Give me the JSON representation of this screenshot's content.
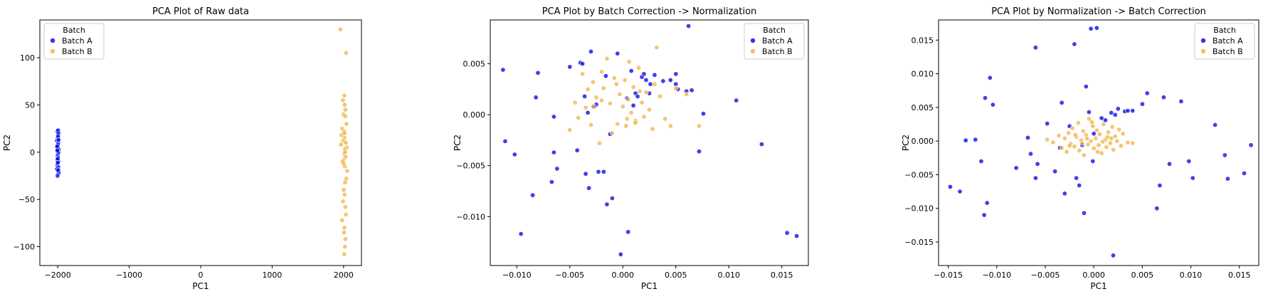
{
  "colors": {
    "batch_a": "#0000e0",
    "batch_b": "#f0b040",
    "axis": "#000000"
  },
  "chart_data": [
    {
      "type": "scatter",
      "title": "PCA Plot of Raw data",
      "xlabel": "PC1",
      "ylabel": "PC2",
      "xlim": [
        -2250,
        2250
      ],
      "ylim": [
        -120,
        140
      ],
      "xticks": [
        -2000,
        -1000,
        0,
        1000,
        2000
      ],
      "xtick_labels": [
        "−2000",
        "−1000",
        "0",
        "1000",
        "2000"
      ],
      "yticks": [
        -100,
        -50,
        0,
        50,
        100
      ],
      "ytick_labels": [
        "−100",
        "−50",
        "0",
        "50",
        "100"
      ],
      "grid": false,
      "legend": {
        "title": "Batch",
        "placement": "top-left"
      },
      "series": [
        {
          "name": "Batch A",
          "color": "#0000e0",
          "x": [
            -2005,
            -1995,
            -1990,
            -2000,
            -2010,
            -1992,
            -1998,
            -2003,
            -1987,
            -2008,
            -1996,
            -2001,
            -1994,
            -2006,
            -1989,
            -1999,
            -2004,
            -1993,
            -2011,
            -1997,
            -1986,
            -2002,
            -1991,
            -2007,
            -1995,
            -2000,
            -1988,
            -1999,
            -2004,
            -1993
          ],
          "y": [
            22,
            23,
            20,
            15,
            12,
            10,
            8,
            5,
            3,
            1,
            -2,
            -4,
            -6,
            -8,
            -10,
            -12,
            -14,
            -16,
            -18,
            -20,
            -22,
            -25,
            0,
            6,
            17,
            -7,
            13,
            -11,
            2,
            -19
          ]
        },
        {
          "name": "Batch B",
          "color": "#f0b040",
          "x": [
            1955,
            2035,
            2010,
            1990,
            2015,
            2025,
            1998,
            2022,
            2040,
            1980,
            1970,
            2005,
            2012,
            1995,
            2030,
            2045,
            1962,
            2018,
            2008,
            2028,
            2000,
            1985,
            2016,
            2050,
            2038,
            2020,
            2002,
            2014,
            1992,
            2024,
            2032,
            1978,
            2011,
            2006,
            2026,
            2019,
            2009,
            2013,
            2001,
            2021
          ],
          "y": [
            130,
            105,
            60,
            55,
            50,
            45,
            40,
            38,
            30,
            25,
            18,
            22,
            15,
            12,
            10,
            5,
            8,
            3,
            -2,
            -5,
            -8,
            -10,
            -15,
            -20,
            -28,
            -32,
            -40,
            -45,
            -52,
            -58,
            -66,
            -72,
            -80,
            -85,
            -92,
            -100,
            -108,
            20,
            -12,
            0
          ]
        }
      ]
    },
    {
      "type": "scatter",
      "title": "PCA Plot by Batch Correction -> Normalization",
      "xlabel": "PC1",
      "ylabel": "PC2",
      "xlim": [
        -0.0125,
        0.0175
      ],
      "ylim": [
        -0.0148,
        0.0093
      ],
      "xticks": [
        -0.01,
        -0.005,
        0,
        0.005,
        0.01,
        0.015
      ],
      "xtick_labels": [
        "−0.010",
        "−0.005",
        "0.000",
        "0.005",
        "0.010",
        "0.015"
      ],
      "yticks": [
        -0.01,
        -0.005,
        0,
        0.005
      ],
      "ytick_labels": [
        "−0.010",
        "−0.005",
        "0.000",
        "0.005"
      ],
      "grid": false,
      "legend": {
        "title": "Batch",
        "placement": "top-right"
      },
      "series": [
        {
          "name": "Batch A",
          "color": "#0000e0",
          "x": [
            -0.0113,
            -0.0111,
            -0.0102,
            -0.0096,
            -0.0085,
            -0.0082,
            -0.008,
            -0.0067,
            -0.0065,
            -0.0065,
            -0.0062,
            -0.005,
            -0.0043,
            -0.004,
            -0.0038,
            -0.0036,
            -0.0035,
            -0.0033,
            -0.0032,
            -0.003,
            -0.0025,
            -0.0023,
            -0.0018,
            -0.0016,
            -0.0015,
            -0.0012,
            -0.001,
            -0.0005,
            -0.0002,
            0.0005,
            0.0008,
            0.001,
            0.0012,
            0.0014,
            0.0018,
            0.002,
            0.0022,
            0.0026,
            0.003,
            0.0038,
            0.0045,
            0.005,
            0.005,
            0.0052,
            0.006,
            0.0062,
            0.0065,
            0.0072,
            0.0076,
            0.0107,
            0.0131,
            0.0155,
            0.0164,
            -0.0027,
            0.0004,
            0.0025
          ],
          "y": [
            0.0044,
            -0.0026,
            -0.0039,
            -0.0117,
            -0.0079,
            0.0017,
            0.0041,
            -0.0066,
            -0.0037,
            -0.0002,
            -0.0053,
            0.0047,
            -0.0035,
            0.0051,
            0.005,
            0.0018,
            -0.0058,
            0.0002,
            -0.0072,
            0.0062,
            0.001,
            -0.0056,
            -0.0056,
            0.0038,
            -0.0088,
            -0.0019,
            -0.0082,
            0.006,
            -0.0137,
            -0.0115,
            0.0043,
            0.0009,
            0.0021,
            0.0018,
            0.0037,
            0.004,
            0.0034,
            0.003,
            0.0039,
            0.0033,
            0.0034,
            0.004,
            0.003,
            0.0025,
            0.0023,
            0.0087,
            0.0024,
            -0.0036,
            0.0001,
            0.0014,
            -0.0029,
            -0.0116,
            -0.0119,
            0.0008,
            0.0016,
            0.0021
          ]
        },
        {
          "name": "Batch B",
          "color": "#f0b040",
          "x": [
            -0.005,
            -0.0045,
            -0.0042,
            -0.0038,
            -0.0035,
            -0.0033,
            -0.003,
            -0.0028,
            -0.0025,
            -0.0022,
            -0.002,
            -0.0018,
            -0.0015,
            -0.0012,
            -0.001,
            -0.0008,
            -0.0005,
            -0.0003,
            0.0,
            0.0002,
            0.0004,
            0.0005,
            0.0006,
            0.0008,
            0.001,
            0.0012,
            0.0015,
            0.0018,
            0.002,
            0.0022,
            0.0025,
            0.0028,
            0.003,
            0.0032,
            0.0035,
            0.004,
            0.0045,
            0.005,
            0.006,
            0.0072,
            -0.0028,
            -0.002,
            0.0012,
            0.0016,
            -0.0006,
            0.0003
          ],
          "y": [
            -0.0015,
            0.0012,
            -0.0003,
            0.004,
            0.0007,
            0.0025,
            -0.001,
            0.0032,
            0.0017,
            -0.0028,
            0.0042,
            0.0026,
            0.0055,
            0.0011,
            -0.0018,
            0.0036,
            -0.0009,
            0.002,
            0.0008,
            0.0034,
            -0.0004,
            0.0015,
            0.0052,
            0.0002,
            0.0027,
            -0.0006,
            0.0046,
            0.0012,
            -0.0002,
            0.0022,
            0.0005,
            -0.0014,
            0.003,
            0.0066,
            0.0018,
            -0.0004,
            -0.0011,
            0.0026,
            0.002,
            -0.0011,
            0.0008,
            0.0014,
            -0.0008,
            0.0023,
            0.003,
            -0.0011
          ]
        }
      ]
    },
    {
      "type": "scatter",
      "title": "PCA Plot by Normalization -> Batch Correction",
      "xlabel": "PC1",
      "ylabel": "PC2",
      "xlim": [
        -0.016,
        0.017
      ],
      "ylim": [
        -0.0185,
        0.018
      ],
      "xticks": [
        -0.015,
        -0.01,
        -0.005,
        0,
        0.005,
        0.01,
        0.015
      ],
      "xtick_labels": [
        "−0.015",
        "−0.010",
        "−0.005",
        "0.000",
        "0.005",
        "0.010",
        "0.015"
      ],
      "yticks": [
        -0.015,
        -0.01,
        -0.005,
        0,
        0.005,
        0.01,
        0.015
      ],
      "ytick_labels": [
        "−0.015",
        "−0.010",
        "−0.005",
        "0.000",
        "0.005",
        "0.010",
        "0.015"
      ],
      "grid": false,
      "legend": {
        "title": "Batch",
        "placement": "top-right"
      },
      "series": [
        {
          "name": "Batch A",
          "color": "#0000e0",
          "x": [
            -0.0148,
            -0.0138,
            -0.0132,
            -0.0122,
            -0.0116,
            -0.0113,
            -0.0112,
            -0.011,
            -0.0107,
            -0.0104,
            -0.008,
            -0.0065,
            -0.006,
            -0.006,
            -0.0058,
            -0.0048,
            -0.004,
            -0.0033,
            -0.003,
            -0.0025,
            -0.002,
            -0.0018,
            -0.0015,
            -0.0012,
            -0.001,
            -0.0008,
            -0.0005,
            -0.0003,
            -0.0001,
            0.0,
            0.0003,
            0.0012,
            0.0018,
            0.002,
            0.0025,
            0.0032,
            0.0035,
            0.004,
            0.005,
            0.0055,
            0.0065,
            0.0068,
            0.0072,
            0.0078,
            0.009,
            0.0098,
            0.0102,
            0.0125,
            0.0135,
            0.0138,
            0.0155,
            0.0162,
            -0.0068,
            -0.0035,
            0.0008,
            0.0022
          ],
          "y": [
            -0.0068,
            -0.0075,
            0.0001,
            0.0002,
            -0.003,
            -0.011,
            0.0064,
            -0.0092,
            0.0094,
            0.0054,
            -0.004,
            -0.0019,
            -0.0055,
            0.0139,
            -0.0034,
            0.0026,
            -0.0045,
            0.0057,
            -0.0078,
            0.0022,
            0.0144,
            -0.0055,
            -0.0066,
            -0.0006,
            -0.0107,
            0.0081,
            0.0043,
            0.0167,
            -0.003,
            0.0011,
            0.0168,
            0.0031,
            0.0042,
            -0.017,
            0.0048,
            0.0044,
            0.0045,
            0.0045,
            0.0055,
            0.0071,
            -0.01,
            -0.0066,
            0.0065,
            -0.0034,
            0.0059,
            -0.003,
            -0.0055,
            0.0024,
            -0.0021,
            -0.0056,
            -0.0048,
            -0.0006,
            0.0005,
            -0.001,
            0.0034,
            0.0039
          ]
        },
        {
          "name": "Batch B",
          "color": "#f0b040",
          "x": [
            -0.0048,
            -0.0042,
            -0.0036,
            -0.0033,
            -0.003,
            -0.0028,
            -0.0026,
            -0.0024,
            -0.0022,
            -0.002,
            -0.0018,
            -0.0016,
            -0.0015,
            -0.0013,
            -0.0011,
            -0.001,
            -0.0008,
            -0.0006,
            -0.0005,
            -0.0003,
            -0.0001,
            0.0,
            0.0002,
            0.0003,
            0.0005,
            0.0006,
            0.0008,
            0.001,
            0.0012,
            0.0013,
            0.0015,
            0.0017,
            0.0019,
            0.002,
            0.0022,
            0.0024,
            0.0026,
            0.0028,
            0.003,
            0.0035,
            0.004,
            -0.0025,
            -0.0012,
            0.0004,
            0.0018,
            -0.0007,
            0.0009,
            -0.0019,
            0.0014,
            -0.0002
          ],
          "y": [
            0.0002,
            -0.0002,
            0.0008,
            -0.001,
            0.0004,
            -0.0016,
            0.0012,
            -0.0004,
            0.0019,
            -0.0008,
            0.0006,
            0.0027,
            -0.0014,
            0.0001,
            0.0015,
            -0.0021,
            0.0009,
            -0.0005,
            0.0033,
            0.0,
            0.0022,
            -0.0011,
            0.0004,
            0.0016,
            -0.0006,
            0.001,
            -0.0018,
            0.0025,
            0.0002,
            -0.0009,
            0.0013,
            -0.0003,
            0.0021,
            -0.0013,
            0.0007,
            0.0,
            0.0017,
            -0.0007,
            0.0011,
            -0.0002,
            -0.0003,
            -0.0007,
            -0.0003,
            -0.0016,
            0.0004,
            0.0004,
            -0.0001,
            0.0009,
            0.0006,
            0.0028
          ]
        }
      ]
    }
  ]
}
